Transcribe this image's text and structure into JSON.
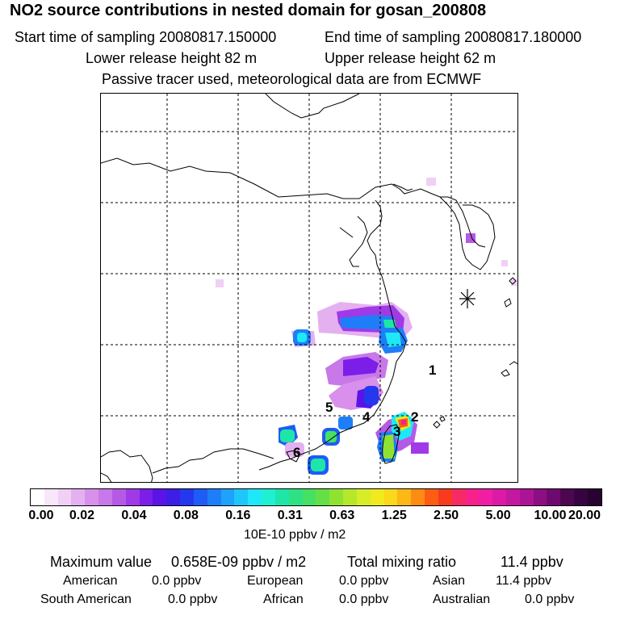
{
  "header": {
    "title": "NO2 source contributions in nested domain for gosan_200808",
    "start_label": "Start time of sampling 20080817.150000",
    "end_label": "End time of sampling 20080817.180000",
    "lower_label": "Lower release height   82 m",
    "upper_label": "Upper release height   62 m",
    "tracer_note": "Passive tracer used, meteorological data are from ECMWF"
  },
  "map": {
    "markers": [
      "1",
      "2",
      "3",
      "4",
      "5",
      "6"
    ],
    "site_symbol": "asterisk-icon"
  },
  "colorbar": {
    "ticks": [
      "0.00",
      "0.02",
      "0.04",
      "0.08",
      "0.16",
      "0.31",
      "0.63",
      "1.25",
      "2.50",
      "5.00",
      "10.00",
      "20.00"
    ],
    "unit": "10E-10 ppbv / m2",
    "colors": [
      "#ffffff",
      "#f8e6fa",
      "#f0d0f5",
      "#e5b0f0",
      "#d890ec",
      "#c878e8",
      "#b45ae6",
      "#9f3ae6",
      "#7b1ee8",
      "#5a14e6",
      "#3c1ee6",
      "#2438ee",
      "#1e5cf5",
      "#1e7ef8",
      "#1ea2fa",
      "#1ec6fc",
      "#1ee8f8",
      "#1ef0d2",
      "#1ee6a8",
      "#2ee284",
      "#46e064",
      "#64e046",
      "#90e232",
      "#b6e82a",
      "#d8ec28",
      "#f0ea1e",
      "#fad81a",
      "#fcb814",
      "#fc8c12",
      "#fc5c14",
      "#f83a1e",
      "#f82a66",
      "#f8208a",
      "#f01ea4",
      "#dc1aa6",
      "#c418a0",
      "#ac1496",
      "#8c0e82",
      "#6e0a6e",
      "#4e0650",
      "#360440",
      "#280230"
    ]
  },
  "stats": {
    "max_label": "Maximum value",
    "max_value": "0.658E-09 ppbv / m2",
    "total_label": "Total mixing ratio",
    "total_value": "11.4 ppbv",
    "sources": [
      {
        "name": "American",
        "value": "0.0 ppbv"
      },
      {
        "name": "European",
        "value": "0.0 ppbv"
      },
      {
        "name": "Asian",
        "value": "11.4 ppbv"
      },
      {
        "name": "South American",
        "value": "0.0 ppbv"
      },
      {
        "name": "African",
        "value": "0.0 ppbv"
      },
      {
        "name": "Australian",
        "value": "0.0 ppbv"
      }
    ]
  }
}
